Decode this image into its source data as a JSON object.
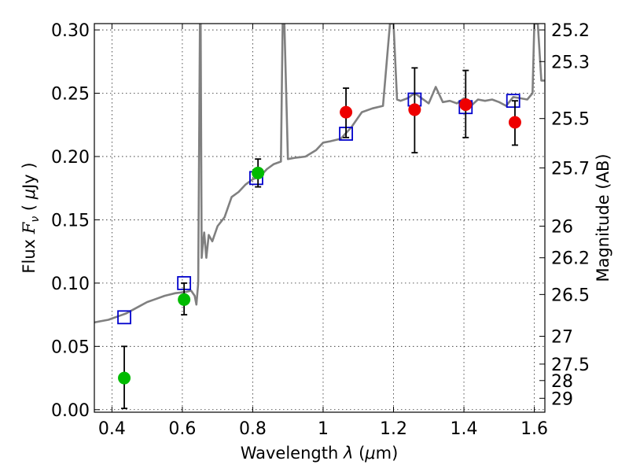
{
  "chart_data": {
    "type": "scatter",
    "xlabel_parts": [
      "Wavelength  ",
      "λ",
      " (",
      "μ",
      "m)"
    ],
    "ylabel_parts": [
      "Flux  ",
      "F",
      "ν",
      "  ( ",
      "μ",
      "Jy )"
    ],
    "y2label": "Magnitude (AB)",
    "xlim": [
      0.35,
      1.63
    ],
    "ylim": [
      -0.002,
      0.305
    ],
    "grid": true,
    "x_ticks": [
      {
        "v": 0.4,
        "label": "0.4"
      },
      {
        "v": 0.6,
        "label": "0.6"
      },
      {
        "v": 0.8,
        "label": "0.8"
      },
      {
        "v": 1.0,
        "label": "1"
      },
      {
        "v": 1.2,
        "label": "1.2"
      },
      {
        "v": 1.4,
        "label": "1.4"
      },
      {
        "v": 1.6,
        "label": "1.6"
      }
    ],
    "y_ticks": [
      {
        "v": 0.0,
        "label": "0.00"
      },
      {
        "v": 0.05,
        "label": "0.05"
      },
      {
        "v": 0.1,
        "label": "0.10"
      },
      {
        "v": 0.15,
        "label": "0.15"
      },
      {
        "v": 0.2,
        "label": "0.20"
      },
      {
        "v": 0.25,
        "label": "0.25"
      },
      {
        "v": 0.3,
        "label": "0.30"
      }
    ],
    "mag_ticks": [
      {
        "v": 0.3,
        "label": "25.2"
      },
      {
        "v": 0.275,
        "label": "25.3"
      },
      {
        "v": 0.23,
        "label": "25.5"
      },
      {
        "v": 0.191,
        "label": "25.7"
      },
      {
        "v": 0.145,
        "label": "26"
      },
      {
        "v": 0.12,
        "label": "26.2"
      },
      {
        "v": 0.091,
        "label": "26.5"
      },
      {
        "v": 0.058,
        "label": "27"
      },
      {
        "v": 0.036,
        "label": "27.5"
      },
      {
        "v": 0.023,
        "label": "28"
      },
      {
        "v": 0.009,
        "label": "29"
      }
    ],
    "series": [
      {
        "kind": "line",
        "color": "#808080",
        "x": [
          0.35,
          0.37,
          0.39,
          0.4,
          0.42,
          0.44,
          0.46,
          0.48,
          0.5,
          0.52,
          0.55,
          0.58,
          0.61,
          0.625,
          0.635,
          0.64,
          0.645,
          0.65,
          0.652,
          0.655,
          0.658,
          0.662,
          0.668,
          0.675,
          0.685,
          0.7,
          0.72,
          0.74,
          0.76,
          0.78,
          0.8,
          0.82,
          0.84,
          0.86,
          0.88,
          0.885,
          0.89,
          0.9,
          0.92,
          0.95,
          0.98,
          1.0,
          1.02,
          1.05,
          1.08,
          1.11,
          1.14,
          1.17,
          1.19,
          1.2,
          1.21,
          1.22,
          1.24,
          1.26,
          1.28,
          1.3,
          1.32,
          1.34,
          1.36,
          1.38,
          1.4,
          1.42,
          1.44,
          1.46,
          1.48,
          1.5,
          1.52,
          1.54,
          1.56,
          1.58,
          1.595,
          1.6,
          1.61,
          1.62,
          1.63
        ],
        "y": [
          0.069,
          0.07,
          0.071,
          0.072,
          0.074,
          0.076,
          0.079,
          0.082,
          0.085,
          0.087,
          0.09,
          0.092,
          0.093,
          0.094,
          0.09,
          0.083,
          0.1,
          0.305,
          0.305,
          0.12,
          0.13,
          0.14,
          0.12,
          0.138,
          0.133,
          0.145,
          0.152,
          0.168,
          0.172,
          0.178,
          0.182,
          0.184,
          0.19,
          0.194,
          0.196,
          0.305,
          0.305,
          0.198,
          0.199,
          0.2,
          0.205,
          0.211,
          0.212,
          0.214,
          0.223,
          0.235,
          0.238,
          0.24,
          0.305,
          0.305,
          0.245,
          0.244,
          0.246,
          0.25,
          0.246,
          0.242,
          0.255,
          0.243,
          0.244,
          0.242,
          0.246,
          0.24,
          0.245,
          0.244,
          0.245,
          0.243,
          0.24,
          0.247,
          0.246,
          0.245,
          0.25,
          0.305,
          0.305,
          0.26,
          0.26
        ]
      },
      {
        "kind": "markers",
        "marker": "square-open",
        "color": "#0000cc",
        "x": [
          0.435,
          0.605,
          0.81,
          1.065,
          1.26,
          1.405,
          1.54
        ],
        "y": [
          0.073,
          0.1,
          0.183,
          0.218,
          0.245,
          0.239,
          0.244
        ]
      },
      {
        "kind": "markers",
        "marker": "circle-filled",
        "color": "#00bb00",
        "x": [
          0.435,
          0.605,
          0.815
        ],
        "y": [
          0.025,
          0.087,
          0.187
        ],
        "err_minus": [
          0.024,
          0.012,
          0.011
        ],
        "err_plus": [
          0.025,
          0.013,
          0.011
        ]
      },
      {
        "kind": "markers",
        "marker": "circle-filled",
        "color": "#ee0000",
        "x": [
          1.065,
          1.26,
          1.405,
          1.545
        ],
        "y": [
          0.235,
          0.237,
          0.241,
          0.227
        ],
        "err_minus": [
          0.02,
          0.034,
          0.026,
          0.018
        ],
        "err_plus": [
          0.019,
          0.033,
          0.027,
          0.017
        ]
      }
    ]
  }
}
